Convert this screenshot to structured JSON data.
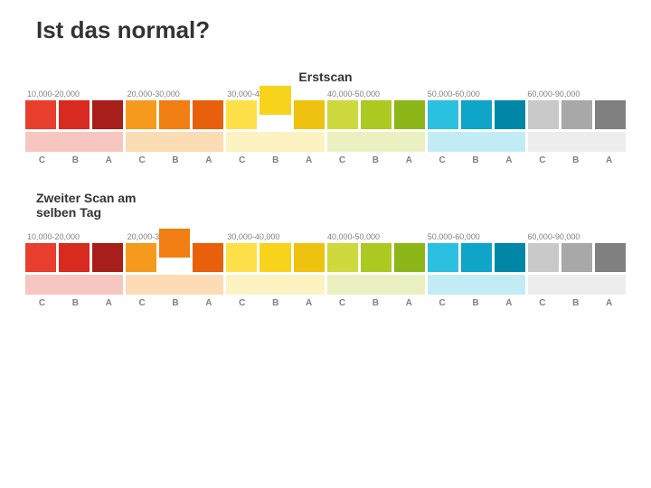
{
  "title": "Ist das normal?",
  "scan1": {
    "label": "Erstscan",
    "range_labels": [
      "10,000-20,000",
      "20,000-30,000",
      "30,000-40,000",
      "40,000-50,000",
      "50,000-60,000",
      "60,000-90,000"
    ],
    "axis_letters": [
      "C",
      "B",
      "A",
      "C",
      "B",
      "A",
      "C",
      "B",
      "A",
      "C",
      "B",
      "A",
      "C",
      "B",
      "A",
      "C",
      "B",
      "A"
    ],
    "swatches": [
      {
        "color": "#e83e2e",
        "raised": false
      },
      {
        "color": "#d82a1f",
        "raised": false
      },
      {
        "color": "#a81e1a",
        "raised": false
      },
      {
        "color": "#f59a1c",
        "raised": false
      },
      {
        "color": "#f07e13",
        "raised": false
      },
      {
        "color": "#e85f0c",
        "raised": false
      },
      {
        "color": "#fde049",
        "raised": false
      },
      {
        "color": "#f8d31c",
        "raised": true
      },
      {
        "color": "#eec30f",
        "raised": false
      },
      {
        "color": "#cdd93c",
        "raised": false
      },
      {
        "color": "#acc921",
        "raised": false
      },
      {
        "color": "#8db618",
        "raised": false
      },
      {
        "color": "#2cc0e0",
        "raised": false
      },
      {
        "color": "#0ea5c9",
        "raised": false
      },
      {
        "color": "#0087a8",
        "raised": false
      },
      {
        "color": "#c9c9c9",
        "raised": false
      },
      {
        "color": "#a8a8a8",
        "raised": false
      },
      {
        "color": "#808080",
        "raised": false
      }
    ],
    "bands": [
      {
        "color": "#f7c6c0",
        "span": 3
      },
      {
        "color": "#fbdcb5",
        "span": 3
      },
      {
        "color": "#fdf2c2",
        "span": 3
      },
      {
        "color": "#eaf0c0",
        "span": 3
      },
      {
        "color": "#c2ecf5",
        "span": 3
      },
      {
        "color": "#ededed",
        "span": 3
      }
    ]
  },
  "scan2": {
    "label": "Zweiter Scan am selben Tag",
    "range_labels": [
      "10,000-20,000",
      "20,000-30,000",
      "30,000-40,000",
      "40,000-50,000",
      "50,000-60,000",
      "60,000-90,000"
    ],
    "axis_letters": [
      "C",
      "B",
      "A",
      "C",
      "B",
      "A",
      "C",
      "B",
      "A",
      "C",
      "B",
      "A",
      "C",
      "B",
      "A",
      "C",
      "B",
      "A"
    ],
    "swatches": [
      {
        "color": "#e83e2e",
        "raised": false
      },
      {
        "color": "#d82a1f",
        "raised": false
      },
      {
        "color": "#a81e1a",
        "raised": false
      },
      {
        "color": "#f59a1c",
        "raised": false
      },
      {
        "color": "#f07e13",
        "raised": true
      },
      {
        "color": "#e85f0c",
        "raised": false
      },
      {
        "color": "#fde049",
        "raised": false
      },
      {
        "color": "#f8d31c",
        "raised": false
      },
      {
        "color": "#eec30f",
        "raised": false
      },
      {
        "color": "#cdd93c",
        "raised": false
      },
      {
        "color": "#acc921",
        "raised": false
      },
      {
        "color": "#8db618",
        "raised": false
      },
      {
        "color": "#2cc0e0",
        "raised": false
      },
      {
        "color": "#0ea5c9",
        "raised": false
      },
      {
        "color": "#0087a8",
        "raised": false
      },
      {
        "color": "#c9c9c9",
        "raised": false
      },
      {
        "color": "#a8a8a8",
        "raised": false
      },
      {
        "color": "#808080",
        "raised": false
      }
    ],
    "bands": [
      {
        "color": "#f7c6c0",
        "span": 3
      },
      {
        "color": "#fbdcb5",
        "span": 3
      },
      {
        "color": "#fdf2c2",
        "span": 3
      },
      {
        "color": "#eaf0c0",
        "span": 3
      },
      {
        "color": "#c2ecf5",
        "span": 3
      },
      {
        "color": "#ededed",
        "span": 3
      }
    ]
  },
  "style": {
    "title_fontsize": 26,
    "label_fontsize": 14,
    "range_fontsize": 9,
    "axis_fontsize": 10,
    "swatch_height": 32,
    "band_height": 22,
    "gap": 3,
    "background": "#ffffff",
    "text_color": "#333333",
    "muted_text": "#808080"
  }
}
